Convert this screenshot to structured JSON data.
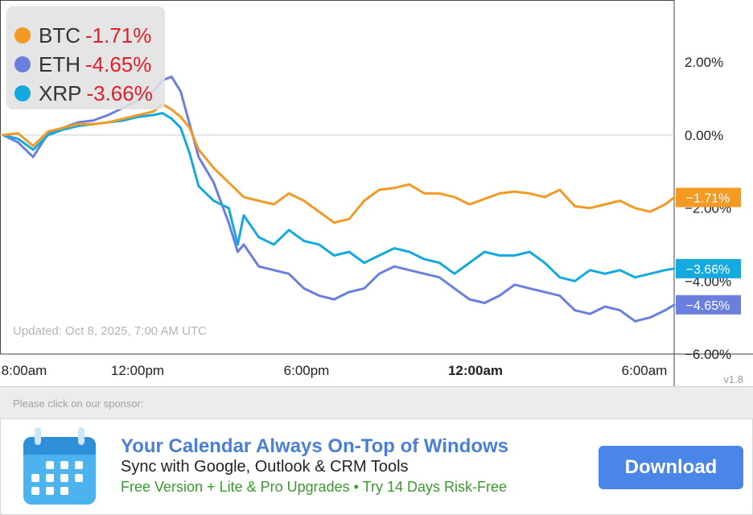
{
  "chart_data": {
    "type": "line",
    "x_ticks": [
      "8:00am",
      "12:00pm",
      "6:00pm",
      "12:00am",
      "6:00am"
    ],
    "x_ticks_bold": [
      false,
      false,
      false,
      true,
      false
    ],
    "y_ticks": [
      {
        "value": 2,
        "label": "2.00%"
      },
      {
        "value": 0,
        "label": "0.00%"
      },
      {
        "value": -2,
        "label": "−2.00%"
      },
      {
        "value": -4,
        "label": "−4.00%"
      },
      {
        "value": -6,
        "label": "−6.00%"
      }
    ],
    "ylim": [
      -6.0,
      3.7
    ],
    "time_range_hours": [
      -0.1,
      22.3
    ],
    "updated_text": "Updated: Oct 8, 2025, 7:00 AM UTC",
    "version": "v1.8",
    "series": [
      {
        "name": "BTC",
        "color": "#f39a24",
        "change": "-1.71%",
        "end_label": "−1.71%",
        "points": [
          [
            0,
            0
          ],
          [
            0.5,
            0.05
          ],
          [
            1,
            -0.3
          ],
          [
            1.5,
            0.1
          ],
          [
            2,
            0.2
          ],
          [
            2.5,
            0.3
          ],
          [
            3,
            0.3
          ],
          [
            3.5,
            0.35
          ],
          [
            4,
            0.45
          ],
          [
            4.5,
            0.55
          ],
          [
            5,
            0.65
          ],
          [
            5.3,
            0.85
          ],
          [
            5.6,
            0.7
          ],
          [
            5.9,
            0.5
          ],
          [
            6.2,
            0.2
          ],
          [
            6.5,
            -0.4
          ],
          [
            7,
            -0.9
          ],
          [
            7.5,
            -1.3
          ],
          [
            8,
            -1.7
          ],
          [
            8.5,
            -1.8
          ],
          [
            9,
            -1.9
          ],
          [
            9.5,
            -1.6
          ],
          [
            10,
            -1.8
          ],
          [
            10.5,
            -2.1
          ],
          [
            11,
            -2.4
          ],
          [
            11.5,
            -2.3
          ],
          [
            12,
            -1.8
          ],
          [
            12.5,
            -1.5
          ],
          [
            13,
            -1.45
          ],
          [
            13.5,
            -1.35
          ],
          [
            14,
            -1.6
          ],
          [
            14.5,
            -1.6
          ],
          [
            15,
            -1.7
          ],
          [
            15.5,
            -1.9
          ],
          [
            16,
            -1.75
          ],
          [
            16.5,
            -1.6
          ],
          [
            17,
            -1.55
          ],
          [
            17.5,
            -1.6
          ],
          [
            18,
            -1.7
          ],
          [
            18.5,
            -1.5
          ],
          [
            19,
            -1.95
          ],
          [
            19.5,
            -2.0
          ],
          [
            20,
            -1.9
          ],
          [
            20.5,
            -1.8
          ],
          [
            21,
            -2.0
          ],
          [
            21.5,
            -2.1
          ],
          [
            22,
            -1.9
          ],
          [
            22.3,
            -1.71
          ]
        ]
      },
      {
        "name": "ETH",
        "color": "#6b7fdf",
        "change": "-4.65%",
        "end_label": "−4.65%",
        "points": [
          [
            0,
            0
          ],
          [
            0.5,
            -0.2
          ],
          [
            1,
            -0.6
          ],
          [
            1.5,
            0.05
          ],
          [
            2,
            0.2
          ],
          [
            2.5,
            0.35
          ],
          [
            3,
            0.4
          ],
          [
            3.5,
            0.55
          ],
          [
            4,
            0.75
          ],
          [
            4.5,
            0.95
          ],
          [
            5,
            1.2
          ],
          [
            5.3,
            1.5
          ],
          [
            5.6,
            1.6
          ],
          [
            5.9,
            1.2
          ],
          [
            6.2,
            0.3
          ],
          [
            6.5,
            -0.6
          ],
          [
            7,
            -1.3
          ],
          [
            7.5,
            -2.4
          ],
          [
            7.8,
            -3.2
          ],
          [
            8,
            -3.0
          ],
          [
            8.5,
            -3.6
          ],
          [
            9,
            -3.7
          ],
          [
            9.5,
            -3.8
          ],
          [
            10,
            -4.2
          ],
          [
            10.5,
            -4.4
          ],
          [
            11,
            -4.5
          ],
          [
            11.5,
            -4.3
          ],
          [
            12,
            -4.2
          ],
          [
            12.5,
            -3.8
          ],
          [
            13,
            -3.6
          ],
          [
            13.5,
            -3.7
          ],
          [
            14,
            -3.8
          ],
          [
            14.5,
            -3.9
          ],
          [
            15,
            -4.2
          ],
          [
            15.5,
            -4.5
          ],
          [
            16,
            -4.6
          ],
          [
            16.5,
            -4.4
          ],
          [
            17,
            -4.1
          ],
          [
            17.5,
            -4.2
          ],
          [
            18,
            -4.3
          ],
          [
            18.5,
            -4.4
          ],
          [
            19,
            -4.8
          ],
          [
            19.5,
            -4.9
          ],
          [
            20,
            -4.7
          ],
          [
            20.5,
            -4.8
          ],
          [
            21,
            -5.1
          ],
          [
            21.5,
            -5.0
          ],
          [
            22,
            -4.8
          ],
          [
            22.3,
            -4.65
          ]
        ]
      },
      {
        "name": "XRP",
        "color": "#14aadf",
        "change": "-3.66%",
        "end_label": "−3.66%",
        "points": [
          [
            0,
            0
          ],
          [
            0.5,
            -0.1
          ],
          [
            1,
            -0.4
          ],
          [
            1.5,
            0.0
          ],
          [
            2,
            0.15
          ],
          [
            2.5,
            0.25
          ],
          [
            3,
            0.3
          ],
          [
            3.5,
            0.35
          ],
          [
            4,
            0.4
          ],
          [
            4.5,
            0.5
          ],
          [
            5,
            0.55
          ],
          [
            5.3,
            0.6
          ],
          [
            5.6,
            0.45
          ],
          [
            5.9,
            0.2
          ],
          [
            6.2,
            -0.5
          ],
          [
            6.5,
            -1.4
          ],
          [
            7,
            -1.8
          ],
          [
            7.5,
            -2.0
          ],
          [
            7.8,
            -3.0
          ],
          [
            8,
            -2.2
          ],
          [
            8.5,
            -2.8
          ],
          [
            9,
            -3.0
          ],
          [
            9.5,
            -2.6
          ],
          [
            10,
            -2.9
          ],
          [
            10.5,
            -3.0
          ],
          [
            11,
            -3.3
          ],
          [
            11.5,
            -3.2
          ],
          [
            12,
            -3.5
          ],
          [
            12.5,
            -3.3
          ],
          [
            13,
            -3.1
          ],
          [
            13.5,
            -3.2
          ],
          [
            14,
            -3.4
          ],
          [
            14.5,
            -3.5
          ],
          [
            15,
            -3.8
          ],
          [
            15.5,
            -3.5
          ],
          [
            16,
            -3.2
          ],
          [
            16.5,
            -3.3
          ],
          [
            17,
            -3.3
          ],
          [
            17.5,
            -3.2
          ],
          [
            18,
            -3.5
          ],
          [
            18.5,
            -3.9
          ],
          [
            19,
            -4.0
          ],
          [
            19.5,
            -3.7
          ],
          [
            20,
            -3.8
          ],
          [
            20.5,
            -3.7
          ],
          [
            21,
            -3.9
          ],
          [
            21.5,
            -3.8
          ],
          [
            22,
            -3.7
          ],
          [
            22.3,
            -3.66
          ]
        ]
      }
    ]
  },
  "sponsor": {
    "prompt": "Please click on our sponsor:",
    "headline": "Your Calendar Always On-Top of Windows",
    "subline": "Sync with Google, Outlook & CRM Tools",
    "note": "Free Version + Lite & Pro Upgrades • Try 14 Days Risk-Free",
    "button_label": "Download",
    "icon": "calendar-icon",
    "colors": {
      "headline": "#4a7fd6",
      "note": "#3a9a2e",
      "button": "#4a86e8",
      "icon": "#4db3ee"
    }
  }
}
